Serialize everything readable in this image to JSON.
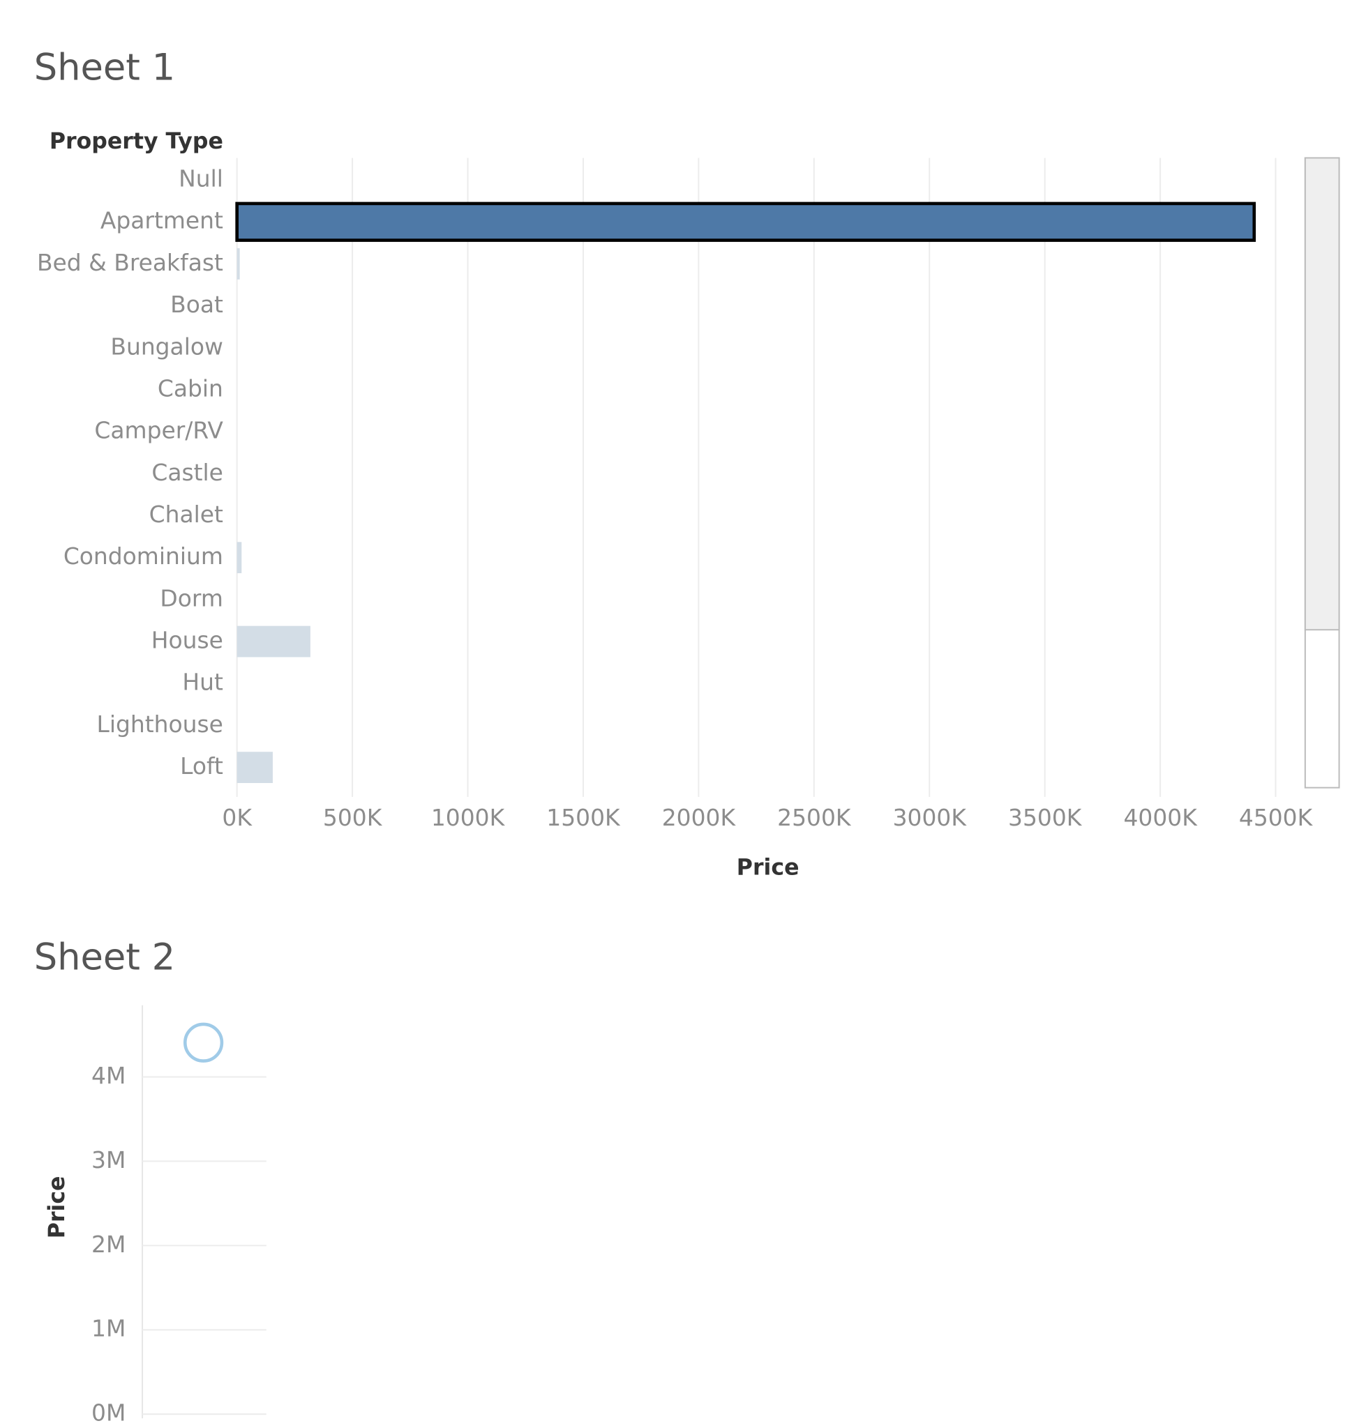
{
  "chart_data": [
    {
      "type": "bar",
      "title": "Sheet 1",
      "category_header": "Property Type",
      "x_label": "Price",
      "categories": [
        "Null",
        "Apartment",
        "Bed & Breakfast",
        "Boat",
        "Bungalow",
        "Cabin",
        "Camper/RV",
        "Castle",
        "Chalet",
        "Condominium",
        "Dorm",
        "House",
        "Hut",
        "Lighthouse",
        "Loft"
      ],
      "values": [
        null,
        4407000,
        12000,
        null,
        null,
        null,
        null,
        null,
        null,
        20000,
        null,
        318000,
        null,
        null,
        155000
      ],
      "color": "#4e79a7",
      "dim_color": "#d3dde6",
      "selected_category": "Apartment",
      "xlim": [
        0,
        4600000
      ],
      "xticks": [
        {
          "value": 0,
          "label": "0K"
        },
        {
          "value": 500000,
          "label": "500K"
        },
        {
          "value": 1000000,
          "label": "1000K"
        },
        {
          "value": 1500000,
          "label": "1500K"
        },
        {
          "value": 2000000,
          "label": "2000K"
        },
        {
          "value": 2500000,
          "label": "2500K"
        },
        {
          "value": 3000000,
          "label": "3000K"
        },
        {
          "value": 3500000,
          "label": "3500K"
        },
        {
          "value": 4000000,
          "label": "4000K"
        },
        {
          "value": 4500000,
          "label": "4500K"
        }
      ],
      "grid": true
    },
    {
      "type": "circle",
      "title": "Sheet 2",
      "y_label": "Price",
      "values": [
        4407000
      ],
      "color": "#a0cbe8",
      "ylim": [
        -50000,
        4850000
      ],
      "yticks": [
        {
          "value": 0,
          "label": "0M"
        },
        {
          "value": 1000000,
          "label": "1M"
        },
        {
          "value": 2000000,
          "label": "2M"
        },
        {
          "value": 3000000,
          "label": "3M"
        },
        {
          "value": 4000000,
          "label": "4M"
        }
      ],
      "grid": true
    }
  ]
}
